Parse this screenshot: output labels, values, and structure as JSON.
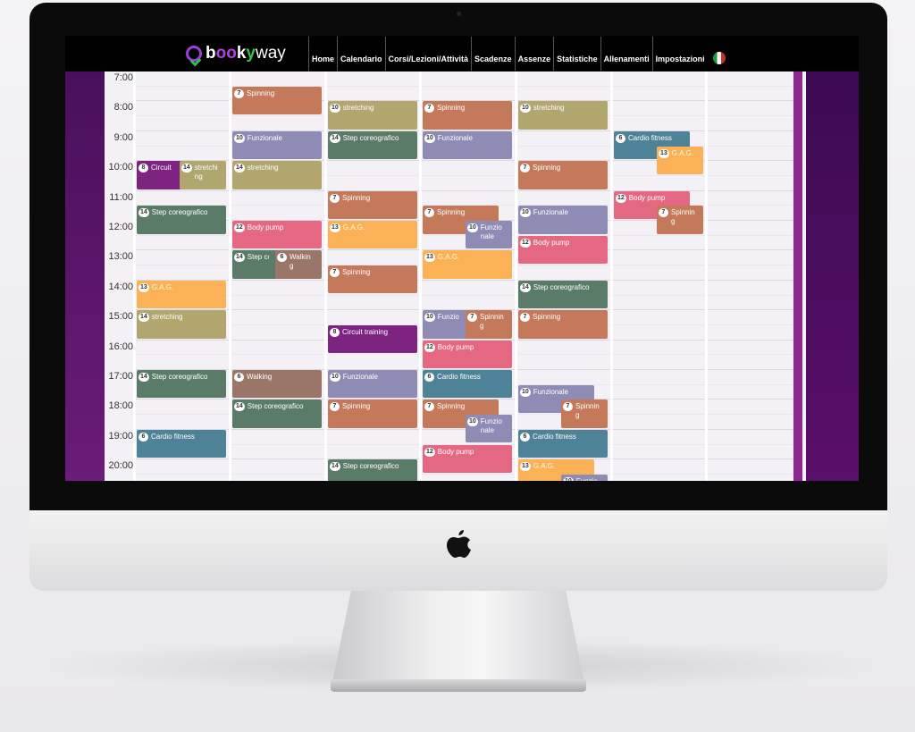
{
  "app": {
    "logo_text": "bookyway"
  },
  "nav": {
    "items": [
      "Home",
      "Calendario",
      "Corsi/Lezioni/Attività",
      "Scadenze",
      "Assenze",
      "Statistiche",
      "Allenamenti",
      "Impostazioni"
    ],
    "language": "it"
  },
  "calendar": {
    "hours": [
      "7:00",
      "8:00",
      "9:00",
      "10:00",
      "11:00",
      "12:00",
      "13:00",
      "14:00",
      "15:00",
      "16:00",
      "17:00",
      "18:00",
      "19:00",
      "20:00"
    ],
    "activity_colors": {
      "Spinning": "#c47a5a",
      "Funzionale": "#8e8bb5",
      "stretching": "#b0a66e",
      "Step coreografico": "#5a7b67",
      "Body pump": "#e56882",
      "G.A.G.": "#fbb257",
      "Circuit training": "#7c2480",
      "Walking": "#997668",
      "Cardio fitness": "#4e8296"
    },
    "events": [
      {
        "day": 1,
        "start": "10:00",
        "end": "11:00",
        "count": 8,
        "name": "Circuit training",
        "lane": "left"
      },
      {
        "day": 1,
        "start": "10:00",
        "end": "11:00",
        "count": 14,
        "name": "stretching",
        "lane": "right"
      },
      {
        "day": 1,
        "start": "11:30",
        "end": "12:30",
        "count": 14,
        "name": "Step coreografico"
      },
      {
        "day": 1,
        "start": "14:00",
        "end": "15:00",
        "count": 13,
        "name": "G.A.G."
      },
      {
        "day": 1,
        "start": "15:00",
        "end": "16:00",
        "count": 14,
        "name": "stretching"
      },
      {
        "day": 1,
        "start": "17:00",
        "end": "18:00",
        "count": 14,
        "name": "Step coreografico"
      },
      {
        "day": 1,
        "start": "19:00",
        "end": "20:00",
        "count": 6,
        "name": "Cardio fitness"
      },
      {
        "day": 2,
        "start": "7:30",
        "end": "8:30",
        "count": 7,
        "name": "Spinning"
      },
      {
        "day": 2,
        "start": "9:00",
        "end": "10:00",
        "count": 10,
        "name": "Funzionale"
      },
      {
        "day": 2,
        "start": "10:00",
        "end": "11:00",
        "count": 14,
        "name": "stretching"
      },
      {
        "day": 2,
        "start": "12:00",
        "end": "13:00",
        "count": 12,
        "name": "Body pump"
      },
      {
        "day": 2,
        "start": "13:00",
        "end": "14:00",
        "count": 14,
        "name": "Step coreografico",
        "lane": "left"
      },
      {
        "day": 2,
        "start": "13:00",
        "end": "14:00",
        "count": 6,
        "name": "Walking",
        "lane": "right"
      },
      {
        "day": 2,
        "start": "17:00",
        "end": "18:00",
        "count": 6,
        "name": "Walking"
      },
      {
        "day": 2,
        "start": "18:00",
        "end": "19:00",
        "count": 14,
        "name": "Step coreografico"
      },
      {
        "day": 3,
        "start": "8:00",
        "end": "9:00",
        "count": 10,
        "name": "stretching"
      },
      {
        "day": 3,
        "start": "9:00",
        "end": "10:00",
        "count": 14,
        "name": "Step coreografico"
      },
      {
        "day": 3,
        "start": "11:00",
        "end": "12:00",
        "count": 7,
        "name": "Spinning"
      },
      {
        "day": 3,
        "start": "12:00",
        "end": "13:00",
        "count": 13,
        "name": "G.A.G."
      },
      {
        "day": 3,
        "start": "13:30",
        "end": "14:30",
        "count": 7,
        "name": "Spinning"
      },
      {
        "day": 3,
        "start": "15:30",
        "end": "16:30",
        "count": 8,
        "name": "Circuit training"
      },
      {
        "day": 3,
        "start": "17:00",
        "end": "18:00",
        "count": 10,
        "name": "Funzionale"
      },
      {
        "day": 3,
        "start": "18:00",
        "end": "19:00",
        "count": 7,
        "name": "Spinning"
      },
      {
        "day": 3,
        "start": "20:00",
        "end": "21:00",
        "count": 14,
        "name": "Step coreografico"
      },
      {
        "day": 4,
        "start": "8:00",
        "end": "9:00",
        "count": 7,
        "name": "Spinning"
      },
      {
        "day": 4,
        "start": "9:00",
        "end": "10:00",
        "count": 10,
        "name": "Funzionale"
      },
      {
        "day": 4,
        "start": "11:30",
        "end": "12:30",
        "count": 7,
        "name": "Spinning",
        "lane": "left"
      },
      {
        "day": 4,
        "start": "12:00",
        "end": "13:00",
        "count": 10,
        "name": "Funzionale",
        "lane": "right"
      },
      {
        "day": 4,
        "start": "13:00",
        "end": "14:00",
        "count": 13,
        "name": "G.A.G."
      },
      {
        "day": 4,
        "start": "15:00",
        "end": "16:00",
        "count": 10,
        "name": "Funzionale",
        "lane": "left"
      },
      {
        "day": 4,
        "start": "15:00",
        "end": "16:00",
        "count": 7,
        "name": "Spinning",
        "lane": "right"
      },
      {
        "day": 4,
        "start": "16:00",
        "end": "17:00",
        "count": 12,
        "name": "Body pump"
      },
      {
        "day": 4,
        "start": "17:00",
        "end": "18:00",
        "count": 6,
        "name": "Cardio fitness"
      },
      {
        "day": 4,
        "start": "18:00",
        "end": "19:00",
        "count": 7,
        "name": "Spinning",
        "lane": "left"
      },
      {
        "day": 4,
        "start": "18:30",
        "end": "19:30",
        "count": 10,
        "name": "Funzionale",
        "lane": "right"
      },
      {
        "day": 4,
        "start": "19:30",
        "end": "20:30",
        "count": 12,
        "name": "Body pump"
      },
      {
        "day": 5,
        "start": "8:00",
        "end": "9:00",
        "count": 10,
        "name": "stretching"
      },
      {
        "day": 5,
        "start": "10:00",
        "end": "11:00",
        "count": 7,
        "name": "Spinning"
      },
      {
        "day": 5,
        "start": "11:30",
        "end": "12:30",
        "count": 10,
        "name": "Funzionale"
      },
      {
        "day": 5,
        "start": "12:30",
        "end": "13:30",
        "count": 12,
        "name": "Body pump"
      },
      {
        "day": 5,
        "start": "14:00",
        "end": "15:00",
        "count": 14,
        "name": "Step coreografico"
      },
      {
        "day": 5,
        "start": "15:00",
        "end": "16:00",
        "count": 7,
        "name": "Spinning"
      },
      {
        "day": 5,
        "start": "17:30",
        "end": "18:30",
        "count": 10,
        "name": "Funzionale",
        "lane": "left"
      },
      {
        "day": 5,
        "start": "18:00",
        "end": "19:00",
        "count": 7,
        "name": "Spinning",
        "lane": "right"
      },
      {
        "day": 5,
        "start": "19:00",
        "end": "20:00",
        "count": 6,
        "name": "Cardio fitness"
      },
      {
        "day": 5,
        "start": "20:00",
        "end": "21:00",
        "count": 13,
        "name": "G.A.G.",
        "lane": "left"
      },
      {
        "day": 5,
        "start": "20:30",
        "end": "21:30",
        "count": 10,
        "name": "Funzionale",
        "lane": "right"
      },
      {
        "day": 6,
        "start": "9:00",
        "end": "10:00",
        "count": 6,
        "name": "Cardio fitness",
        "lane": "left"
      },
      {
        "day": 6,
        "start": "9:30",
        "end": "10:30",
        "count": 13,
        "name": "G.A.G.",
        "lane": "right"
      },
      {
        "day": 6,
        "start": "11:00",
        "end": "12:00",
        "count": 12,
        "name": "Body pump",
        "lane": "left"
      },
      {
        "day": 6,
        "start": "11:30",
        "end": "12:30",
        "count": 7,
        "name": "Spinning",
        "lane": "right"
      }
    ]
  }
}
